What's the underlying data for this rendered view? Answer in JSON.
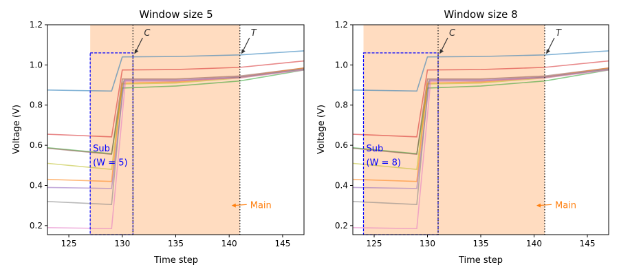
{
  "chart_data": [
    {
      "type": "line",
      "title": "Window size 5",
      "xlabel": "Time step",
      "ylabel": "Voltage (V)",
      "xlim": [
        123,
        147
      ],
      "ylim": [
        0.155,
        1.2
      ],
      "xticks": [
        125,
        130,
        135,
        140,
        145
      ],
      "yticks": [
        0.2,
        0.4,
        0.6,
        0.8,
        1.0,
        1.2
      ],
      "ytick_labels": [
        "0.2",
        "0.4",
        "0.6",
        "0.8",
        "1.0",
        "1.2"
      ],
      "grid": false,
      "main_span": [
        127,
        141
      ],
      "sub_box": {
        "x": [
          127,
          131
        ],
        "y": [
          0.155,
          1.06
        ],
        "label": "Sub",
        "label2": "(W = 5)"
      },
      "vlines": [
        {
          "x": 131,
          "label": "C"
        },
        {
          "x": 141,
          "label": "T"
        }
      ],
      "main_label": "Main"
    },
    {
      "type": "line",
      "title": "Window size 8",
      "xlabel": "Time step",
      "ylabel": "Voltage (V)",
      "xlim": [
        123,
        147
      ],
      "ylim": [
        0.155,
        1.2
      ],
      "xticks": [
        125,
        130,
        135,
        140,
        145
      ],
      "yticks": [
        0.2,
        0.4,
        0.6,
        0.8,
        1.0,
        1.2
      ],
      "ytick_labels": [
        "0.2",
        "0.4",
        "0.6",
        "0.8",
        "1.0",
        "1.2"
      ],
      "grid": false,
      "main_span": [
        124,
        141
      ],
      "sub_box": {
        "x": [
          124,
          131
        ],
        "y": [
          0.155,
          1.06
        ],
        "label": "Sub",
        "label2": "(W = 8)"
      },
      "vlines": [
        {
          "x": 131,
          "label": "C"
        },
        {
          "x": 141,
          "label": "T"
        }
      ],
      "main_label": "Main"
    }
  ],
  "series": [
    {
      "color": "#1f77b4",
      "x": [
        123,
        129,
        130,
        135,
        141,
        147
      ],
      "y": [
        0.875,
        0.87,
        1.04,
        1.042,
        1.05,
        1.07
      ]
    },
    {
      "color": "#d62728",
      "x": [
        123,
        129,
        130,
        135,
        141,
        147
      ],
      "y": [
        0.655,
        0.642,
        0.975,
        0.977,
        0.988,
        1.02
      ]
    },
    {
      "color": "#2ca02c",
      "x": [
        123,
        129,
        130,
        135,
        141,
        147
      ],
      "y": [
        0.588,
        0.558,
        0.885,
        0.895,
        0.92,
        0.975
      ]
    },
    {
      "color": "#8c564b",
      "x": [
        123,
        129,
        130,
        135,
        141,
        147
      ],
      "y": [
        0.585,
        0.555,
        0.93,
        0.93,
        0.945,
        0.985
      ]
    },
    {
      "color": "#bcbd22",
      "x": [
        123,
        129,
        130,
        135,
        141,
        147
      ],
      "y": [
        0.51,
        0.48,
        0.905,
        0.91,
        0.935,
        0.98
      ]
    },
    {
      "color": "#ff7f0e",
      "x": [
        123,
        129,
        130,
        135,
        141,
        147
      ],
      "y": [
        0.43,
        0.42,
        0.91,
        0.915,
        0.94,
        0.985
      ]
    },
    {
      "color": "#9467bd",
      "x": [
        123,
        129,
        130.2,
        135,
        141,
        147
      ],
      "y": [
        0.39,
        0.385,
        0.925,
        0.925,
        0.94,
        0.98
      ]
    },
    {
      "color": "#7f7f7f",
      "x": [
        123,
        129,
        130.1,
        135,
        141,
        147
      ],
      "y": [
        0.32,
        0.305,
        0.92,
        0.92,
        0.938,
        0.978
      ]
    },
    {
      "color": "#e377c2",
      "x": [
        123,
        129,
        130.3,
        135,
        141,
        147
      ],
      "y": [
        0.19,
        0.185,
        0.92,
        0.92,
        0.935,
        0.975
      ]
    }
  ],
  "colors": {
    "span": "#ffdcc0",
    "box": "#0000ff",
    "annot": "#333333",
    "main": "#ff7f0e"
  }
}
